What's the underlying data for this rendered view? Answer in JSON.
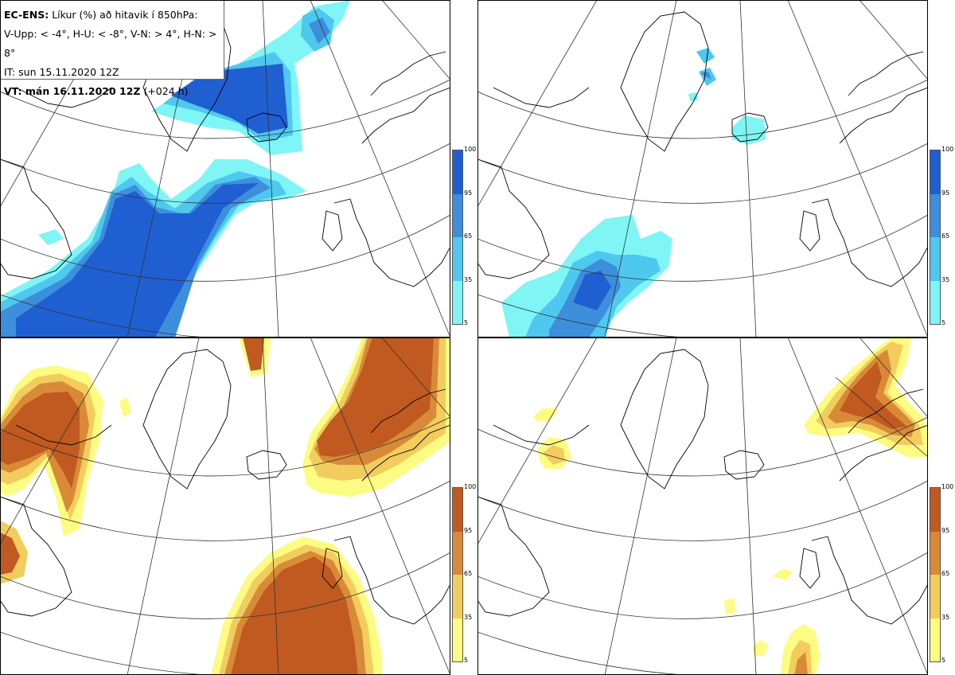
{
  "info": {
    "product": "EC-ENS:",
    "variable": "Líkur (%) að hitavik í 850hPa:",
    "thresholds": "V-Upp: < -4°, H-U: < -8°, V-N: > 4°, H-N: > 8°",
    "init_time": "IT: sun 15.11.2020 12Z",
    "valid_bold": "VT: mán 16.11.2020 12Z",
    "valid_offset": "(+024 h)"
  },
  "colorbar_ticks": [
    "100",
    "95",
    "65",
    "35",
    "5"
  ],
  "colors": {
    "cold": [
      "#7ff5f5",
      "#4ec8ef",
      "#3d8fdc",
      "#1f5fd1"
    ],
    "warm": [
      "#fdfc82",
      "#f2cd5e",
      "#d98a36",
      "#c05a20"
    ],
    "land_outline": "#000000",
    "grid": "#333333"
  },
  "panels": [
    {
      "name": "panel-cold-minus4",
      "scheme": "cold"
    },
    {
      "name": "panel-cold-minus8",
      "scheme": "cold"
    },
    {
      "name": "panel-warm-plus4",
      "scheme": "warm"
    },
    {
      "name": "panel-warm-plus8",
      "scheme": "warm"
    }
  ]
}
